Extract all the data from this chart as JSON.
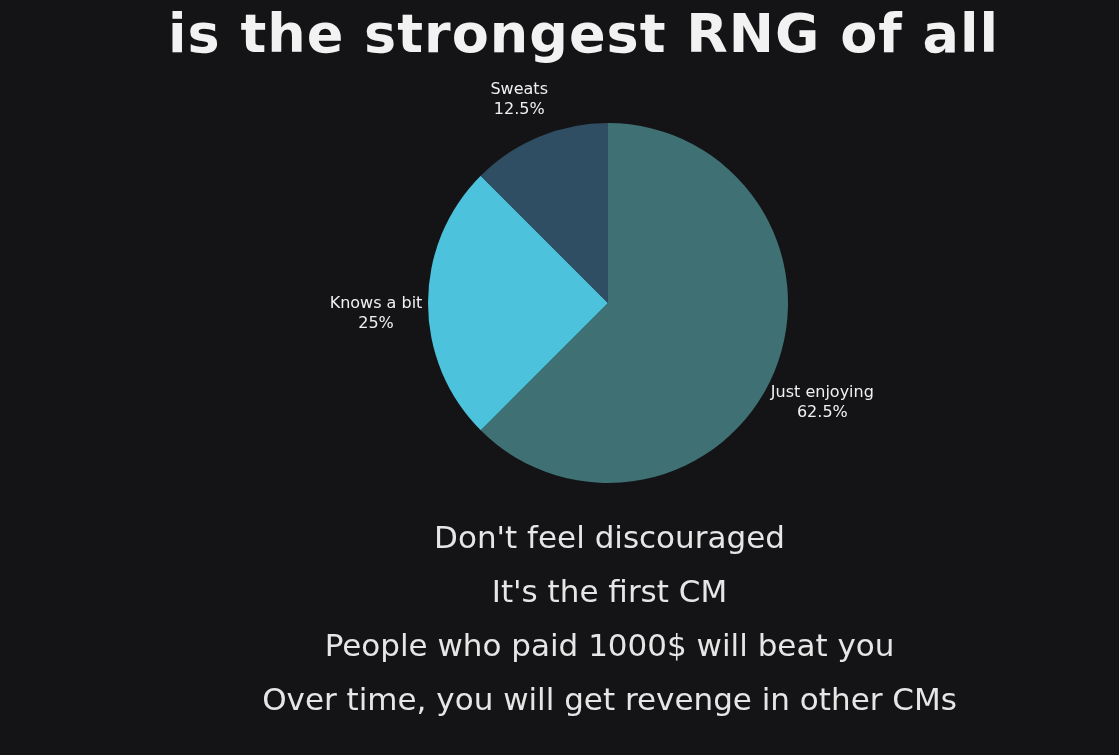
{
  "chart_data": {
    "type": "pie",
    "title": "is the strongest RNG of all",
    "categories": [
      "Just enjoying",
      "Knows a bit",
      "Sweats"
    ],
    "values": [
      62.5,
      25,
      12.5
    ],
    "value_labels": [
      "62.5%",
      "25%",
      "12.5%"
    ],
    "colors": [
      "#3e7074",
      "#4cc2dc",
      "#2f4e63"
    ],
    "annotations": [
      "Don't feel discouraged",
      "It's the first CM",
      "People who paid 1000$ will beat you",
      "Over time, you will get revenge in other CMs"
    ]
  }
}
